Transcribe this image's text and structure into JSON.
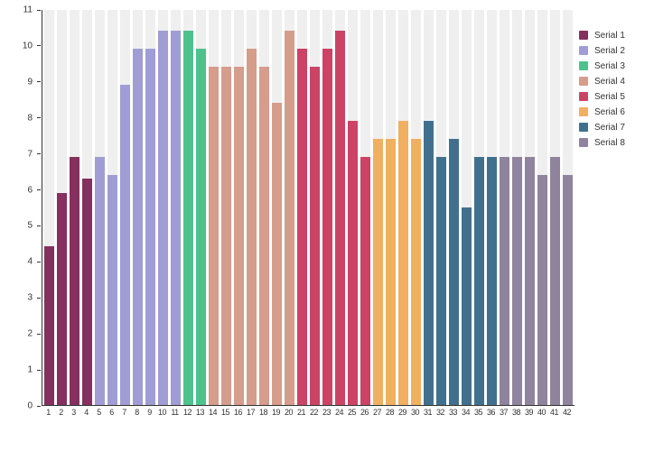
{
  "chart_data": {
    "type": "bar",
    "title": "",
    "xlabel": "",
    "ylabel": "",
    "ylim": [
      0,
      11
    ],
    "yticks": [
      0,
      1,
      2,
      3,
      4,
      5,
      6,
      7,
      8,
      9,
      10,
      11
    ],
    "grid": "none",
    "legend_position": "right",
    "band_background_color": "#efefef",
    "axis_color": "#333333",
    "categories": [
      "1",
      "2",
      "3",
      "4",
      "5",
      "6",
      "7",
      "8",
      "9",
      "10",
      "11",
      "12",
      "13",
      "14",
      "15",
      "16",
      "17",
      "18",
      "19",
      "20",
      "21",
      "22",
      "23",
      "24",
      "25",
      "26",
      "27",
      "28",
      "29",
      "30",
      "31",
      "32",
      "33",
      "34",
      "35",
      "36",
      "37",
      "38",
      "39",
      "40",
      "41",
      "42"
    ],
    "series": [
      {
        "name": "Serial 1",
        "color": "#85305f",
        "values": [
          4.4,
          5.9,
          6.9,
          6.3
        ]
      },
      {
        "name": "Serial 2",
        "color": "#a09dd4",
        "values": [
          6.9,
          6.4,
          8.9,
          9.9,
          9.9,
          10.4,
          10.4
        ]
      },
      {
        "name": "Serial 3",
        "color": "#4ec28d",
        "values": [
          10.4,
          9.9
        ]
      },
      {
        "name": "Serial 4",
        "color": "#d69c8c",
        "values": [
          9.4,
          9.4,
          9.4,
          9.9,
          9.4,
          8.4,
          10.4
        ]
      },
      {
        "name": "Serial 5",
        "color": "#cb4365",
        "values": [
          9.9,
          9.4,
          9.9,
          10.4,
          7.9,
          6.9
        ]
      },
      {
        "name": "Serial 6",
        "color": "#f0b05f",
        "values": [
          7.4,
          7.4,
          7.9,
          7.4
        ]
      },
      {
        "name": "Serial 7",
        "color": "#41708f",
        "values": [
          7.9,
          6.9,
          7.4,
          5.5,
          6.9,
          6.9
        ]
      },
      {
        "name": "Serial 8",
        "color": "#90839d",
        "values": [
          6.9,
          6.9,
          6.9,
          6.4,
          6.9,
          6.4
        ]
      }
    ]
  }
}
